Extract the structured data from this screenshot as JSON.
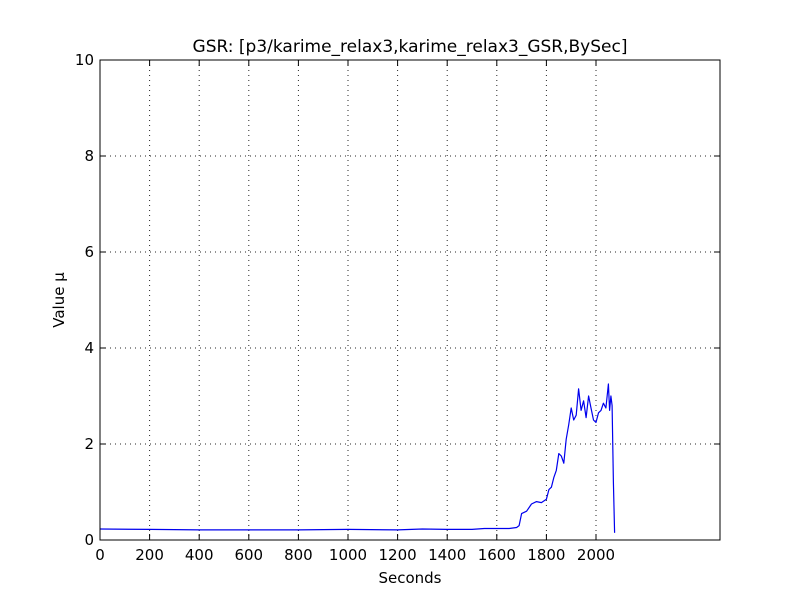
{
  "chart_data": {
    "type": "line",
    "title": "GSR: [p3/karime_relax3,karime_relax3_GSR,BySec]",
    "xlabel": "Seconds",
    "ylabel": "Value µ",
    "xlim": [
      0,
      2500
    ],
    "ylim": [
      0,
      10
    ],
    "xticks": [
      0,
      200,
      400,
      600,
      800,
      1000,
      1200,
      1400,
      1600,
      1800,
      2000
    ],
    "yticks": [
      0,
      2,
      4,
      6,
      8,
      10
    ],
    "grid": true,
    "line_color": "#0000ee",
    "series": [
      {
        "x": [
          0,
          200,
          400,
          600,
          800,
          1000,
          1200,
          1300,
          1400,
          1500,
          1550,
          1600,
          1650,
          1680,
          1690,
          1700,
          1720,
          1740,
          1760,
          1780,
          1800,
          1810,
          1820,
          1830,
          1840,
          1850,
          1860,
          1870,
          1880,
          1890,
          1900,
          1910,
          1920,
          1930,
          1940,
          1950,
          1960,
          1970,
          1980,
          1990,
          2000,
          2010,
          2020,
          2030,
          2040,
          2050,
          2055,
          2060,
          2065,
          2070,
          2075
        ],
        "y": [
          0.23,
          0.22,
          0.21,
          0.21,
          0.21,
          0.22,
          0.21,
          0.23,
          0.22,
          0.22,
          0.24,
          0.24,
          0.24,
          0.26,
          0.3,
          0.55,
          0.6,
          0.75,
          0.8,
          0.78,
          0.85,
          1.05,
          1.1,
          1.3,
          1.45,
          1.8,
          1.75,
          1.6,
          2.1,
          2.4,
          2.75,
          2.5,
          2.6,
          3.15,
          2.7,
          2.9,
          2.55,
          3.0,
          2.75,
          2.5,
          2.45,
          2.65,
          2.7,
          2.85,
          2.75,
          3.25,
          2.7,
          3.0,
          2.8,
          1.2,
          0.15
        ]
      }
    ]
  }
}
